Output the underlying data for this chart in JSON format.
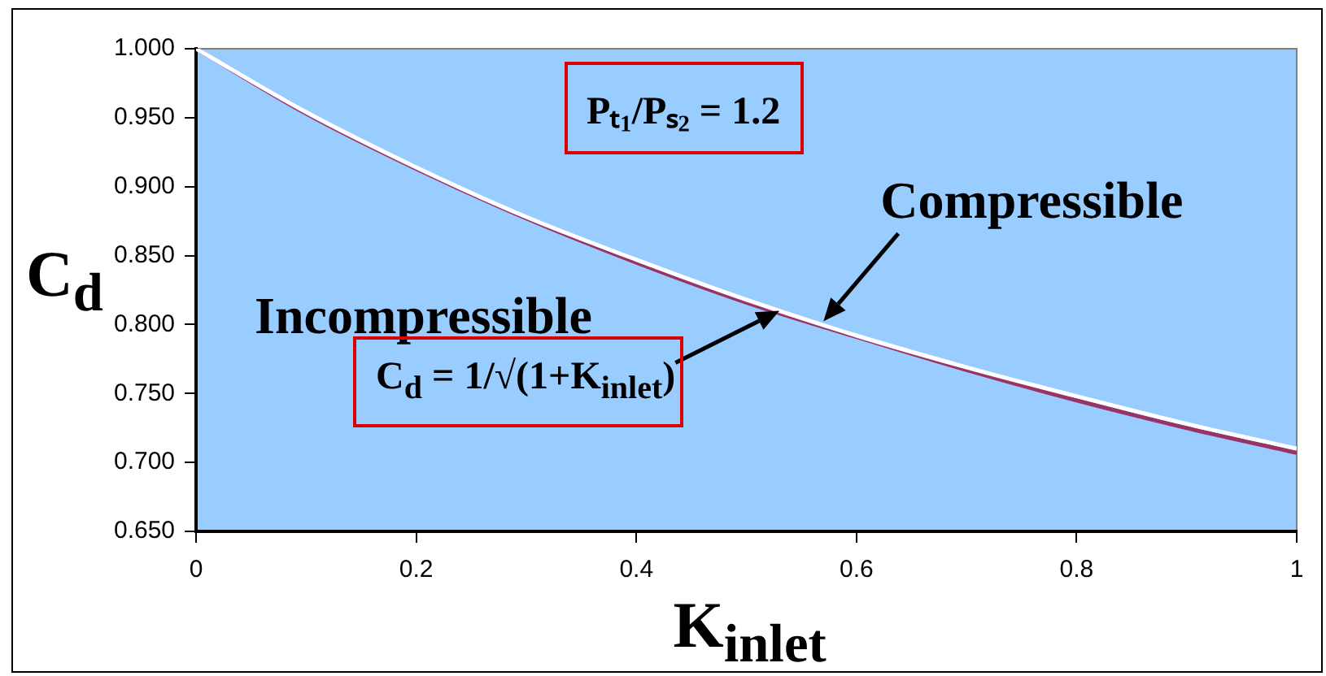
{
  "chart_data": {
    "type": "line",
    "xlabel": "K$_{inlet}$",
    "ylabel": "C$_{d}$",
    "x": [
      0,
      0.1,
      0.2,
      0.3,
      0.4,
      0.5,
      0.6,
      0.7,
      0.8,
      0.9,
      1
    ],
    "series": [
      {
        "color": "#ffffff",
        "values": [
          1.0,
          0.954,
          0.914,
          0.878,
          0.847,
          0.818,
          0.792,
          0.769,
          0.748,
          0.728,
          0.71
        ]
      },
      {
        "color": "#993366",
        "values": [
          1.0,
          0.953,
          0.913,
          0.877,
          0.845,
          0.816,
          0.791,
          0.767,
          0.745,
          0.725,
          0.707
        ]
      }
    ],
    "xlim": [
      0,
      1
    ],
    "xticks": [
      0,
      0.2,
      0.4,
      0.6,
      0.8,
      1
    ],
    "ylim": [
      0.65,
      1
    ],
    "yticks": [
      {
        "value": 0.65,
        "label": "0.650"
      },
      {
        "value": 0.7,
        "label": "0.700"
      },
      {
        "value": 0.75,
        "label": "0.750"
      },
      {
        "value": 0.8,
        "label": "0.800"
      },
      {
        "value": 0.85,
        "label": "0.850"
      },
      {
        "value": 0.9,
        "label": "0.900"
      },
      {
        "value": 0.95,
        "label": "0.950"
      },
      {
        "value": 1,
        "label": "1.000"
      }
    ],
    "grid": false,
    "legend": false,
    "marker": "none",
    "line_style": "solid",
    "annotations": [
      "Pₜ₁/Pₛ₂ = 1.2",
      {
        "text": "Compressible",
        "x": 0.57,
        "y": 0.8
      },
      "Incompressible",
      {
        "text": "C$_{d}$ = 1/√(1+K$_{inlet}$)",
        "x": 0.53,
        "y": 0.81
      }
    ]
  }
}
